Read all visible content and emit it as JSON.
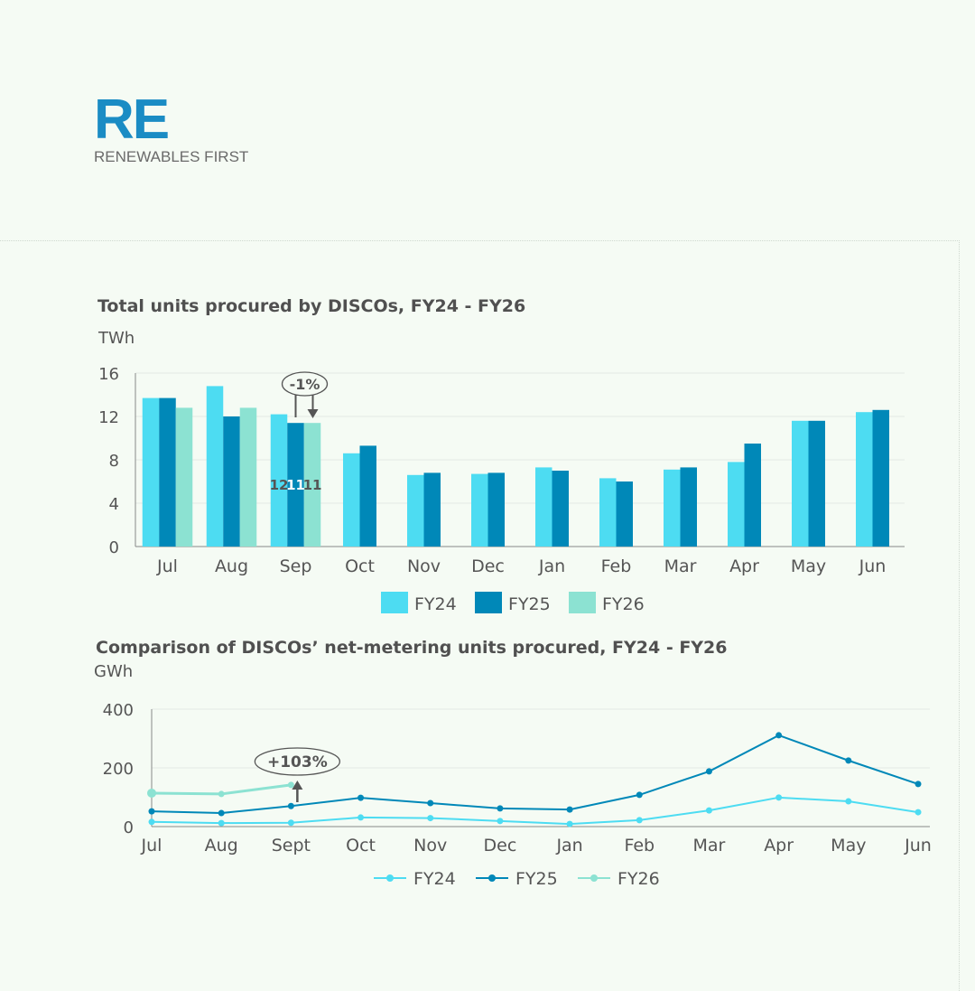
{
  "logo": {
    "mark": "RE",
    "text": "RENEWABLES FIRST"
  },
  "colors": {
    "FY24": "#4ddcf2",
    "FY25": "#0088b8",
    "FY26": "#8ce2d2",
    "logo": "#1b8cc4"
  },
  "chart_data": [
    {
      "type": "bar",
      "title": "Total units procured by DISCOs, FY24 - FY26",
      "ylabel": "TWh",
      "ylim": [
        0,
        16
      ],
      "yticks": [
        0,
        4,
        8,
        12,
        16
      ],
      "grid": true,
      "legend": "bottom",
      "categories": [
        "Jul",
        "Aug",
        "Sep",
        "Oct",
        "Nov",
        "Dec",
        "Jan",
        "Feb",
        "Mar",
        "Apr",
        "May",
        "Jun"
      ],
      "series": [
        {
          "name": "FY24",
          "values": [
            13.7,
            14.8,
            12.2,
            8.6,
            6.6,
            6.7,
            7.3,
            6.3,
            7.1,
            7.8,
            11.6,
            12.4
          ]
        },
        {
          "name": "FY25",
          "values": [
            13.7,
            12.0,
            11.4,
            9.3,
            6.8,
            6.8,
            7.0,
            6.0,
            7.3,
            9.5,
            11.6,
            12.6
          ]
        },
        {
          "name": "FY26",
          "values": [
            12.8,
            12.8,
            11.4,
            null,
            null,
            null,
            null,
            null,
            null,
            null,
            null,
            null
          ]
        }
      ],
      "data_labels": [
        {
          "category": "Sep",
          "series": "FY24",
          "text": "12"
        },
        {
          "category": "Sep",
          "series": "FY25",
          "text": "11"
        },
        {
          "category": "Sep",
          "series": "FY26",
          "text": "11"
        }
      ],
      "annotation": {
        "text": "-1%",
        "category": "Sep"
      }
    },
    {
      "type": "line",
      "title": "Comparison of DISCOs’ net-metering units procured,  FY24 - FY26",
      "ylabel": "GWh",
      "ylim": [
        0,
        400
      ],
      "yticks": [
        0,
        200,
        400
      ],
      "grid": true,
      "legend": "bottom",
      "categories": [
        "Jul",
        "Aug",
        "Sept",
        "Oct",
        "Nov",
        "Dec",
        "Jan",
        "Feb",
        "Mar",
        "Apr",
        "May",
        "Jun"
      ],
      "series": [
        {
          "name": "FY24",
          "values": [
            16,
            12,
            13,
            31,
            29,
            19,
            9,
            22,
            55,
            99,
            86,
            49
          ]
        },
        {
          "name": "FY25",
          "values": [
            52,
            46,
            70,
            98,
            80,
            62,
            58,
            108,
            188,
            311,
            225,
            145
          ]
        },
        {
          "name": "FY26",
          "values": [
            114,
            111,
            142,
            null,
            null,
            null,
            null,
            null,
            null,
            null,
            null,
            null
          ]
        }
      ],
      "annotation": {
        "text": "+103%",
        "category": "Sept"
      }
    }
  ]
}
